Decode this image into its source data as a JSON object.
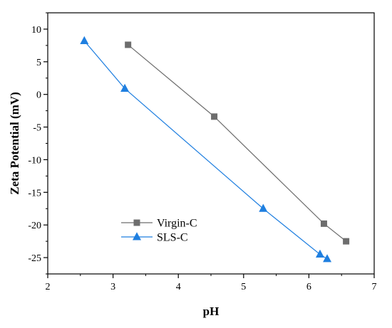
{
  "chart_data": {
    "type": "line",
    "xlabel": "pH",
    "ylabel": "Zeta Potential (mV)",
    "xlim": [
      2,
      7
    ],
    "ylim": [
      -27.5,
      12.5
    ],
    "xticks": [
      2,
      3,
      4,
      5,
      6,
      7
    ],
    "yticks": [
      10,
      5,
      0,
      -5,
      -10,
      -15,
      -20,
      -25
    ],
    "grid": false,
    "legend_position": "bottom-left",
    "series": [
      {
        "name": "Virgin-C",
        "marker": "square",
        "color": "#6d6d6d",
        "x": [
          3.23,
          4.55,
          6.23,
          6.57
        ],
        "y": [
          7.6,
          -3.4,
          -19.8,
          -22.5
        ]
      },
      {
        "name": "SLS-C",
        "marker": "triangle",
        "color": "#1f7fe0",
        "x": [
          2.56,
          3.18,
          5.3,
          6.17,
          6.28
        ],
        "y": [
          8.2,
          0.9,
          -17.5,
          -24.5,
          -25.2
        ]
      }
    ]
  }
}
